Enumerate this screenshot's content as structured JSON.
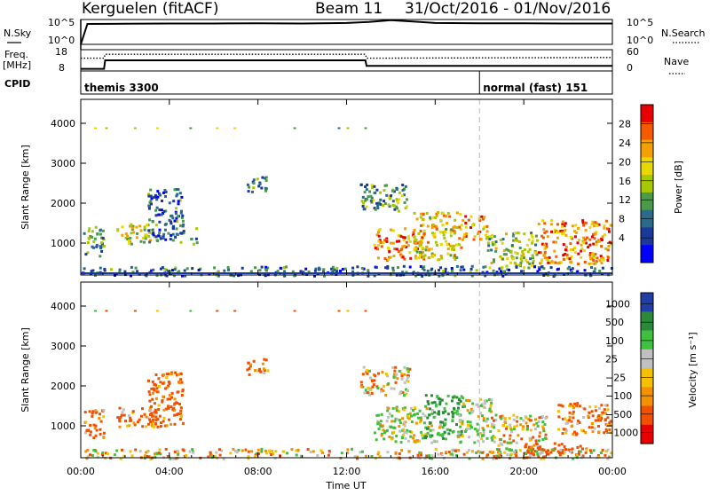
{
  "header": {
    "station": "Kerguelen (fitACF)",
    "beam": "Beam 11",
    "date_range": "31/Oct/2016 - 01/Nov/2016"
  },
  "nsky_panel": {
    "left_label": "N.Sky",
    "right_label": "N.Search",
    "left_ticks": [
      "10^5",
      "10^0"
    ],
    "right_ticks": [
      "10^5",
      "10^0"
    ]
  },
  "freq_panel": {
    "left_label_1": "Freq.",
    "left_label_2": "[MHz]",
    "right_label": "Nave",
    "left_ticks": [
      "18",
      "8"
    ],
    "right_ticks": [
      "60",
      "0"
    ]
  },
  "cpid_panel": {
    "label": "CPID",
    "programs": [
      {
        "name": "themis 3300",
        "start_hour": 0
      },
      {
        "name": "normal (fast) 151",
        "start_hour": 18
      }
    ]
  },
  "x_axis": {
    "label": "Time UT",
    "ticks": [
      "00:00",
      "04:00",
      "08:00",
      "12:00",
      "16:00",
      "20:00",
      "00:00"
    ]
  },
  "power_colorbar": {
    "label": "Power [dB]",
    "ticks": [
      "28",
      "24",
      "20",
      "16",
      "12",
      "8",
      "4"
    ],
    "colors": [
      "#e80000",
      "#f45a00",
      "#f5a000",
      "#e8d800",
      "#a8c800",
      "#4a9a4a",
      "#2a6a8a",
      "#1a3a9a",
      "#0000ff"
    ]
  },
  "velocity_colorbar": {
    "label": "Velocity [m s⁻¹]",
    "ticks": [
      "1000",
      "500",
      "100",
      "25",
      "−25",
      "−100",
      "−500",
      "−1000"
    ],
    "colors": [
      "#1f3fa8",
      "#2a8a3a",
      "#3fc03f",
      "#c0c0c0",
      "#f5c000",
      "#f59000",
      "#f05000",
      "#e80000"
    ]
  },
  "chart_data": [
    {
      "type": "line",
      "title": "",
      "xlabel": "Time UT",
      "ylabel": "N.Sky",
      "xlim": [
        0,
        24
      ],
      "x": [
        0,
        0.3,
        2,
        4,
        6,
        8,
        10,
        12,
        13,
        14,
        15,
        16,
        18,
        20,
        22,
        24
      ],
      "series": [
        {
          "values_log10": [
            0,
            4.1,
            4.15,
            4.2,
            4.2,
            4.25,
            4.2,
            4.3,
            4.5,
            4.85,
            4.6,
            4.3,
            4.25,
            4.25,
            4.2,
            4.2
          ]
        }
      ]
    },
    {
      "type": "line",
      "title": "",
      "xlabel": "Time UT",
      "ylabel": "Freq. [MHz]",
      "ylim": [
        8,
        18
      ],
      "x": [
        0,
        1.05,
        1.1,
        12.85,
        12.9,
        24
      ],
      "series": [
        {
          "name": "Freq.",
          "values": [
            9.0,
            9.0,
            13.0,
            13.0,
            10.4,
            10.4
          ]
        },
        {
          "name": "Nave",
          "values": [
            36,
            36,
            47,
            47,
            36,
            38
          ]
        }
      ]
    },
    {
      "type": "heatmap",
      "title": "",
      "xlabel": "Time UT",
      "ylabel": "Slant Range [km]",
      "colorbar": "Power [dB]",
      "xlim": [
        0,
        24
      ],
      "ylim": [
        200,
        4600
      ],
      "clim": [
        0,
        32
      ],
      "yticks": [
        1000,
        2000,
        3000,
        4000
      ],
      "echo_regions": [
        {
          "t0": 0.1,
          "t1": 1.0,
          "r0": 700,
          "r1": 1500,
          "level": 12
        },
        {
          "t0": 1.6,
          "t1": 3.4,
          "r0": 1000,
          "r1": 1500,
          "level": 16
        },
        {
          "t0": 3.0,
          "t1": 4.6,
          "r0": 1000,
          "r1": 2400,
          "level": 8
        },
        {
          "t0": 4.9,
          "t1": 5.2,
          "r0": 1000,
          "r1": 1400,
          "level": 8
        },
        {
          "t0": 7.4,
          "t1": 8.4,
          "r0": 2300,
          "r1": 2700,
          "level": 8
        },
        {
          "t0": 12.6,
          "t1": 14.8,
          "r0": 1800,
          "r1": 2500,
          "level": 12
        },
        {
          "t0": 13.2,
          "t1": 15.5,
          "r0": 600,
          "r1": 1400,
          "level": 24
        },
        {
          "t0": 15.0,
          "t1": 17.2,
          "r0": 600,
          "r1": 1800,
          "level": 20
        },
        {
          "t0": 17.2,
          "t1": 18.3,
          "r0": 1100,
          "r1": 1700,
          "level": 24
        },
        {
          "t0": 18.3,
          "t1": 20.6,
          "r0": 400,
          "r1": 1300,
          "level": 16
        },
        {
          "t0": 20.6,
          "t1": 23.9,
          "r0": 500,
          "r1": 1600,
          "level": 24
        },
        {
          "t0": 0.0,
          "t1": 24.0,
          "r0": 200,
          "r1": 450,
          "level": 8
        }
      ]
    },
    {
      "type": "heatmap",
      "title": "",
      "xlabel": "Time UT",
      "ylabel": "Slant Range [km]",
      "colorbar": "Velocity [m s⁻¹]",
      "xlim": [
        0,
        24
      ],
      "ylim": [
        200,
        4600
      ],
      "clim": [
        -1000,
        1000
      ],
      "yticks": [
        1000,
        2000,
        3000,
        4000
      ],
      "echo_regions": [
        {
          "t0": 0.1,
          "t1": 1.0,
          "r0": 700,
          "r1": 1500,
          "velocity": -150
        },
        {
          "t0": 1.6,
          "t1": 3.4,
          "r0": 1000,
          "r1": 1500,
          "velocity": -120
        },
        {
          "t0": 3.0,
          "t1": 4.6,
          "r0": 1000,
          "r1": 2400,
          "velocity": -200
        },
        {
          "t0": 7.4,
          "t1": 8.4,
          "r0": 2300,
          "r1": 2700,
          "velocity": -150
        },
        {
          "t0": 12.6,
          "t1": 14.8,
          "r0": 1800,
          "r1": 2500,
          "velocity": 0
        },
        {
          "t0": 13.2,
          "t1": 16.2,
          "r0": 600,
          "r1": 1500,
          "velocity": 120
        },
        {
          "t0": 15.5,
          "t1": 17.2,
          "r0": 700,
          "r1": 1800,
          "velocity": 500
        },
        {
          "t0": 17.0,
          "t1": 18.5,
          "r0": 600,
          "r1": 1700,
          "velocity": 100
        },
        {
          "t0": 18.5,
          "t1": 21.0,
          "r0": 300,
          "r1": 1300,
          "velocity": 0
        },
        {
          "t0": 20.0,
          "t1": 22.8,
          "r0": 300,
          "r1": 600,
          "velocity": -300
        },
        {
          "t0": 21.5,
          "t1": 23.9,
          "r0": 800,
          "r1": 1600,
          "velocity": -150
        },
        {
          "t0": 0.0,
          "t1": 24.0,
          "r0": 200,
          "r1": 450,
          "velocity": 0
        }
      ]
    }
  ]
}
